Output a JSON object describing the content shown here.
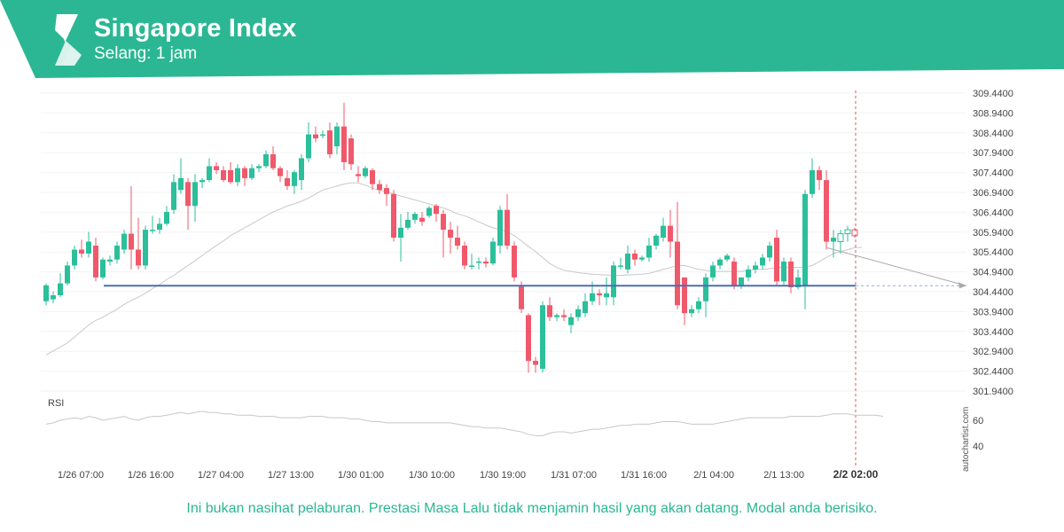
{
  "header": {
    "title": "Singapore Index",
    "subtitle": "Selang: 1 jam",
    "brand_color": "#2bb793"
  },
  "watermark": "autochartist.com",
  "disclaimer": "Ini bukan nasihat pelaburan. Prestasi Masa Lalu tidak menjamin hasil yang akan datang. Modal anda berisiko.",
  "chart_data": {
    "type": "candlestick",
    "y_ticks": [
      "309.4400",
      "308.9400",
      "308.4400",
      "307.9400",
      "307.4400",
      "306.9400",
      "306.4400",
      "305.9400",
      "305.4400",
      "304.9400",
      "304.4400",
      "303.9400",
      "303.4400",
      "302.9400",
      "302.4400",
      "301.9400"
    ],
    "ylim": [
      301.9,
      309.5
    ],
    "x_labels": [
      "1/26 07:00",
      "1/26 16:00",
      "1/27 04:00",
      "1/27 13:00",
      "1/30 01:00",
      "1/30 10:00",
      "1/30 19:00",
      "1/31 07:00",
      "1/31 16:00",
      "2/1 04:00",
      "2/1 13:00",
      "2/2 02:00"
    ],
    "current_time_label": "2/2 02:00",
    "support_level": 304.59,
    "colors": {
      "up": "#2bbf9b",
      "down": "#f0596b",
      "level": "#4a6fb5",
      "ma": "#c8c8c8",
      "rsi": "#c8c8c8"
    },
    "candles": [
      {
        "o": 304.2,
        "h": 304.65,
        "l": 304.1,
        "c": 304.6
      },
      {
        "o": 304.25,
        "h": 304.45,
        "l": 304.15,
        "c": 304.35
      },
      {
        "o": 304.35,
        "h": 304.9,
        "l": 304.3,
        "c": 304.65
      },
      {
        "o": 304.65,
        "h": 305.2,
        "l": 304.6,
        "c": 305.1
      },
      {
        "o": 305.1,
        "h": 305.6,
        "l": 305.0,
        "c": 305.5
      },
      {
        "o": 305.5,
        "h": 305.75,
        "l": 305.3,
        "c": 305.4
      },
      {
        "o": 305.4,
        "h": 305.95,
        "l": 305.3,
        "c": 305.7
      },
      {
        "o": 305.6,
        "h": 305.8,
        "l": 304.7,
        "c": 304.8
      },
      {
        "o": 304.8,
        "h": 305.3,
        "l": 304.75,
        "c": 305.25
      },
      {
        "o": 305.2,
        "h": 305.35,
        "l": 305.1,
        "c": 305.25
      },
      {
        "o": 305.25,
        "h": 305.7,
        "l": 305.15,
        "c": 305.6
      },
      {
        "o": 305.5,
        "h": 306.0,
        "l": 305.4,
        "c": 305.9
      },
      {
        "o": 305.9,
        "h": 307.1,
        "l": 305.0,
        "c": 305.5
      },
      {
        "o": 305.5,
        "h": 306.3,
        "l": 305.0,
        "c": 305.1
      },
      {
        "o": 305.1,
        "h": 306.1,
        "l": 305.0,
        "c": 306.0
      },
      {
        "o": 306.0,
        "h": 306.35,
        "l": 305.9,
        "c": 306.0
      },
      {
        "o": 306.0,
        "h": 306.3,
        "l": 305.9,
        "c": 306.15
      },
      {
        "o": 306.15,
        "h": 306.6,
        "l": 306.1,
        "c": 306.45
      },
      {
        "o": 306.5,
        "h": 307.4,
        "l": 306.4,
        "c": 307.2
      },
      {
        "o": 307.0,
        "h": 307.8,
        "l": 306.9,
        "c": 307.3
      },
      {
        "o": 307.2,
        "h": 307.3,
        "l": 306.0,
        "c": 306.6
      },
      {
        "o": 306.6,
        "h": 307.4,
        "l": 306.2,
        "c": 307.2
      },
      {
        "o": 307.2,
        "h": 307.3,
        "l": 307.05,
        "c": 307.25
      },
      {
        "o": 307.25,
        "h": 307.8,
        "l": 307.2,
        "c": 307.6
      },
      {
        "o": 307.6,
        "h": 307.7,
        "l": 307.4,
        "c": 307.5
      },
      {
        "o": 307.5,
        "h": 307.6,
        "l": 307.2,
        "c": 307.25
      },
      {
        "o": 307.5,
        "h": 307.7,
        "l": 307.15,
        "c": 307.2
      },
      {
        "o": 307.2,
        "h": 307.65,
        "l": 307.1,
        "c": 307.55
      },
      {
        "o": 307.55,
        "h": 307.6,
        "l": 307.1,
        "c": 307.3
      },
      {
        "o": 307.3,
        "h": 307.65,
        "l": 307.25,
        "c": 307.55
      },
      {
        "o": 307.55,
        "h": 307.65,
        "l": 307.45,
        "c": 307.6
      },
      {
        "o": 307.6,
        "h": 308.0,
        "l": 307.55,
        "c": 307.9
      },
      {
        "o": 307.9,
        "h": 308.1,
        "l": 307.5,
        "c": 307.55
      },
      {
        "o": 307.55,
        "h": 307.6,
        "l": 307.2,
        "c": 307.35
      },
      {
        "o": 307.3,
        "h": 307.5,
        "l": 307.0,
        "c": 307.1
      },
      {
        "o": 307.1,
        "h": 307.5,
        "l": 306.9,
        "c": 307.45
      },
      {
        "o": 307.25,
        "h": 307.9,
        "l": 307.0,
        "c": 307.8
      },
      {
        "o": 307.8,
        "h": 308.7,
        "l": 307.7,
        "c": 308.4
      },
      {
        "o": 308.4,
        "h": 308.6,
        "l": 308.2,
        "c": 308.3
      },
      {
        "o": 308.4,
        "h": 308.5,
        "l": 308.3,
        "c": 308.4
      },
      {
        "o": 308.5,
        "h": 308.7,
        "l": 307.8,
        "c": 307.9
      },
      {
        "o": 308.1,
        "h": 308.7,
        "l": 307.9,
        "c": 308.6
      },
      {
        "o": 308.6,
        "h": 309.2,
        "l": 307.5,
        "c": 307.7
      },
      {
        "o": 308.3,
        "h": 308.4,
        "l": 307.5,
        "c": 307.65
      },
      {
        "o": 307.4,
        "h": 307.6,
        "l": 307.2,
        "c": 307.35
      },
      {
        "o": 307.35,
        "h": 307.6,
        "l": 307.3,
        "c": 307.55
      },
      {
        "o": 307.5,
        "h": 307.55,
        "l": 307.0,
        "c": 307.15
      },
      {
        "o": 307.15,
        "h": 307.25,
        "l": 306.9,
        "c": 307.0
      },
      {
        "o": 307.05,
        "h": 307.15,
        "l": 306.6,
        "c": 306.9
      },
      {
        "o": 306.9,
        "h": 307.0,
        "l": 305.7,
        "c": 305.8
      },
      {
        "o": 305.8,
        "h": 306.4,
        "l": 305.2,
        "c": 306.05
      },
      {
        "o": 306.05,
        "h": 306.45,
        "l": 306.0,
        "c": 306.25
      },
      {
        "o": 306.25,
        "h": 306.45,
        "l": 306.15,
        "c": 306.4
      },
      {
        "o": 306.3,
        "h": 306.45,
        "l": 306.1,
        "c": 306.2
      },
      {
        "o": 306.35,
        "h": 306.6,
        "l": 306.3,
        "c": 306.55
      },
      {
        "o": 306.6,
        "h": 306.65,
        "l": 306.2,
        "c": 306.4
      },
      {
        "o": 306.4,
        "h": 306.5,
        "l": 305.3,
        "c": 306.0
      },
      {
        "o": 306.0,
        "h": 306.2,
        "l": 305.4,
        "c": 305.8
      },
      {
        "o": 305.8,
        "h": 306.1,
        "l": 305.5,
        "c": 305.6
      },
      {
        "o": 305.6,
        "h": 305.7,
        "l": 305.0,
        "c": 305.1
      },
      {
        "o": 305.1,
        "h": 305.4,
        "l": 305.0,
        "c": 305.1
      },
      {
        "o": 305.2,
        "h": 305.3,
        "l": 305.0,
        "c": 305.2
      },
      {
        "o": 305.2,
        "h": 305.3,
        "l": 305.05,
        "c": 305.15
      },
      {
        "o": 305.15,
        "h": 305.8,
        "l": 305.1,
        "c": 305.7
      },
      {
        "o": 305.6,
        "h": 306.6,
        "l": 305.4,
        "c": 306.5
      },
      {
        "o": 306.5,
        "h": 306.9,
        "l": 305.5,
        "c": 305.6
      },
      {
        "o": 305.6,
        "h": 305.7,
        "l": 304.7,
        "c": 304.8
      },
      {
        "o": 304.6,
        "h": 304.7,
        "l": 303.9,
        "c": 304.0
      },
      {
        "o": 303.85,
        "h": 303.9,
        "l": 302.4,
        "c": 302.7
      },
      {
        "o": 302.7,
        "h": 302.8,
        "l": 302.4,
        "c": 302.6
      },
      {
        "o": 302.5,
        "h": 304.2,
        "l": 302.4,
        "c": 304.1
      },
      {
        "o": 304.1,
        "h": 304.3,
        "l": 303.7,
        "c": 303.8
      },
      {
        "o": 303.8,
        "h": 303.9,
        "l": 303.7,
        "c": 303.85
      },
      {
        "o": 303.85,
        "h": 304.0,
        "l": 303.7,
        "c": 303.8
      },
      {
        "o": 303.6,
        "h": 303.9,
        "l": 303.4,
        "c": 303.8
      },
      {
        "o": 303.8,
        "h": 304.1,
        "l": 303.7,
        "c": 304.0
      },
      {
        "o": 303.9,
        "h": 304.4,
        "l": 303.8,
        "c": 304.2
      },
      {
        "o": 304.2,
        "h": 304.7,
        "l": 304.1,
        "c": 304.4
      },
      {
        "o": 304.4,
        "h": 304.5,
        "l": 304.1,
        "c": 304.35
      },
      {
        "o": 304.3,
        "h": 304.8,
        "l": 304.1,
        "c": 304.4
      },
      {
        "o": 304.3,
        "h": 305.2,
        "l": 304.1,
        "c": 305.1
      },
      {
        "o": 305.1,
        "h": 305.3,
        "l": 305.0,
        "c": 305.1
      },
      {
        "o": 305.0,
        "h": 305.6,
        "l": 304.9,
        "c": 305.4
      },
      {
        "o": 305.4,
        "h": 305.5,
        "l": 305.1,
        "c": 305.25
      },
      {
        "o": 305.25,
        "h": 305.35,
        "l": 305.2,
        "c": 305.3
      },
      {
        "o": 305.3,
        "h": 305.8,
        "l": 305.2,
        "c": 305.6
      },
      {
        "o": 305.6,
        "h": 305.9,
        "l": 305.5,
        "c": 305.85
      },
      {
        "o": 305.8,
        "h": 306.3,
        "l": 305.7,
        "c": 306.1
      },
      {
        "o": 306.1,
        "h": 306.5,
        "l": 305.3,
        "c": 305.7
      },
      {
        "o": 305.7,
        "h": 306.7,
        "l": 304.0,
        "c": 304.1
      },
      {
        "o": 304.8,
        "h": 304.8,
        "l": 303.6,
        "c": 303.9
      },
      {
        "o": 303.9,
        "h": 304.1,
        "l": 303.8,
        "c": 304.0
      },
      {
        "o": 304.0,
        "h": 304.3,
        "l": 303.9,
        "c": 304.2
      },
      {
        "o": 304.2,
        "h": 304.9,
        "l": 303.8,
        "c": 304.8
      },
      {
        "o": 304.8,
        "h": 305.2,
        "l": 304.7,
        "c": 305.1
      },
      {
        "o": 305.1,
        "h": 305.3,
        "l": 305.0,
        "c": 305.25
      },
      {
        "o": 305.25,
        "h": 305.4,
        "l": 305.2,
        "c": 305.35
      },
      {
        "o": 305.2,
        "h": 305.3,
        "l": 304.5,
        "c": 304.6
      },
      {
        "o": 304.6,
        "h": 304.8,
        "l": 304.5,
        "c": 304.8
      },
      {
        "o": 304.8,
        "h": 305.1,
        "l": 304.7,
        "c": 305.0
      },
      {
        "o": 305.0,
        "h": 305.2,
        "l": 304.9,
        "c": 305.1
      },
      {
        "o": 305.1,
        "h": 305.4,
        "l": 305.0,
        "c": 305.3
      },
      {
        "o": 305.3,
        "h": 305.7,
        "l": 305.2,
        "c": 305.6
      },
      {
        "o": 305.8,
        "h": 306.0,
        "l": 304.6,
        "c": 304.7
      },
      {
        "o": 304.7,
        "h": 305.3,
        "l": 304.6,
        "c": 305.2
      },
      {
        "o": 305.2,
        "h": 305.3,
        "l": 304.4,
        "c": 304.55
      },
      {
        "o": 304.55,
        "h": 305.0,
        "l": 304.5,
        "c": 304.8
      },
      {
        "o": 304.6,
        "h": 307.0,
        "l": 304.0,
        "c": 306.9
      },
      {
        "o": 306.9,
        "h": 307.8,
        "l": 306.8,
        "c": 307.5
      },
      {
        "o": 307.5,
        "h": 307.6,
        "l": 307.0,
        "c": 307.25
      },
      {
        "o": 307.25,
        "h": 307.5,
        "l": 305.5,
        "c": 305.7
      },
      {
        "o": 305.7,
        "h": 306.0,
        "l": 305.3,
        "c": 305.8
      },
      {
        "o": 305.7,
        "h": 306.0,
        "l": 305.4,
        "c": 305.9
      },
      {
        "o": 305.9,
        "h": 306.1,
        "l": 305.7,
        "c": 306.0
      },
      {
        "o": 306.0,
        "h": 306.05,
        "l": 305.8,
        "c": 305.85
      }
    ],
    "moving_average": [
      302.85,
      302.95,
      303.05,
      303.15,
      303.3,
      303.45,
      303.6,
      303.72,
      303.8,
      303.9,
      304.0,
      304.12,
      304.22,
      304.3,
      304.4,
      304.52,
      304.62,
      304.75,
      304.85,
      304.98,
      305.1,
      305.22,
      305.35,
      305.48,
      305.6,
      305.72,
      305.85,
      305.95,
      306.05,
      306.15,
      306.25,
      306.35,
      306.45,
      306.52,
      306.6,
      306.65,
      306.72,
      306.8,
      306.9,
      307.0,
      307.05,
      307.1,
      307.15,
      307.18,
      307.18,
      307.12,
      307.05,
      307.0,
      306.95,
      306.9,
      306.85,
      306.8,
      306.75,
      306.7,
      306.65,
      306.6,
      306.55,
      306.48,
      306.4,
      306.35,
      306.28,
      306.2,
      306.12,
      306.05,
      306.0,
      305.95,
      305.85,
      305.72,
      305.58,
      305.45,
      305.3,
      305.15,
      305.05,
      304.98,
      304.95,
      304.92,
      304.9,
      304.88,
      304.87,
      304.86,
      304.85,
      304.85,
      304.86,
      304.87,
      304.88,
      304.9,
      304.95,
      305.0,
      305.05,
      305.1,
      305.1,
      305.05,
      305.0,
      304.98,
      304.95,
      304.95,
      304.95,
      304.95,
      304.95,
      304.98,
      305.0,
      305.0,
      305.02,
      305.05,
      305.05,
      305.05,
      305.05,
      305.05,
      305.1,
      305.2,
      305.3,
      305.4,
      305.45,
      305.5,
      305.55,
      305.55
    ],
    "rsi_ticks": [
      "60",
      "40"
    ],
    "rsi_label": "RSI",
    "rsi": [
      57,
      58,
      60,
      61,
      62,
      61,
      63,
      62,
      60,
      61,
      62,
      63,
      61,
      60,
      62,
      63,
      63,
      64,
      65,
      66,
      65,
      66,
      67,
      66,
      66,
      65,
      65,
      64,
      64,
      64,
      63,
      63,
      63,
      62,
      62,
      62,
      62,
      63,
      63,
      63,
      62,
      62,
      62,
      61,
      61,
      60,
      59,
      59,
      58,
      58,
      58,
      58,
      58,
      58,
      58,
      58,
      58,
      58,
      57,
      56,
      55,
      55,
      54,
      54,
      54,
      53,
      52,
      51,
      49,
      48,
      48,
      50,
      51,
      51,
      50,
      51,
      52,
      53,
      53,
      54,
      55,
      56,
      56,
      57,
      57,
      57,
      58,
      59,
      59,
      59,
      58,
      57,
      57,
      57,
      57,
      58,
      59,
      60,
      61,
      62,
      62,
      62,
      62,
      62,
      62,
      63,
      63,
      63,
      63,
      63,
      64,
      65,
      65,
      65,
      64,
      64,
      64,
      64,
      63
    ]
  }
}
